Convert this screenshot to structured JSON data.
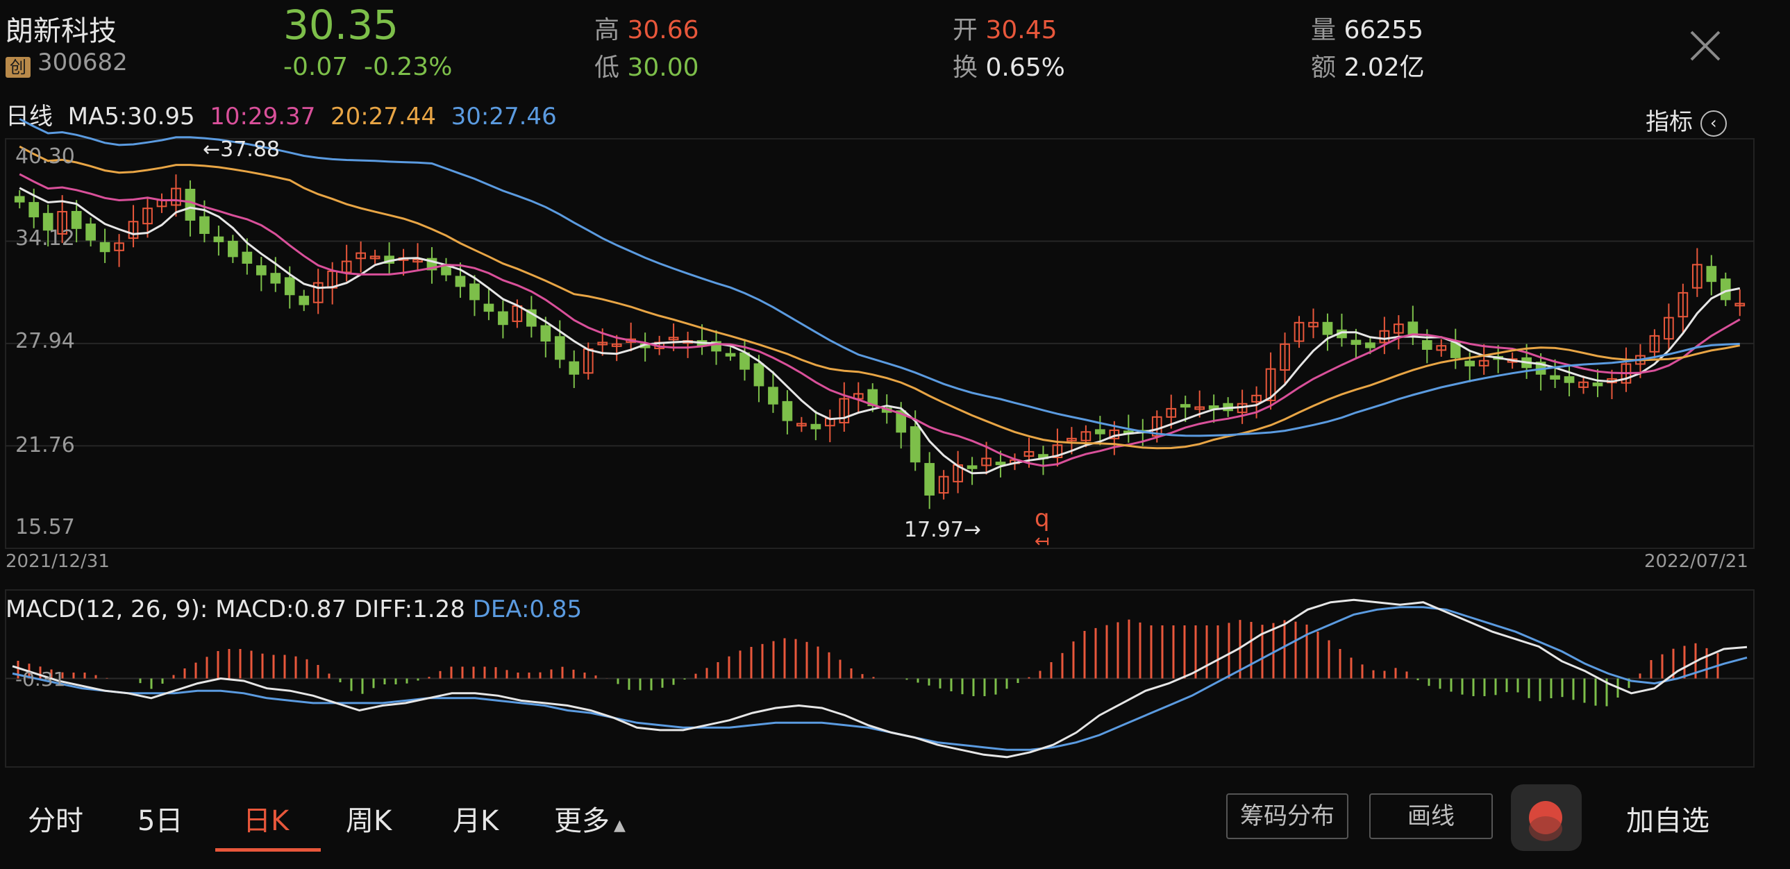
{
  "stock": {
    "name": "朗新科技",
    "badge": "创",
    "code": "300682"
  },
  "quote": {
    "price": "30.35",
    "change": "-0.07",
    "change_pct": "-0.23%"
  },
  "stats": {
    "high_label": "高",
    "high": "30.66",
    "low_label": "低",
    "low": "30.00",
    "open_label": "开",
    "open": "30.45",
    "turnover_label": "换",
    "turnover": "0.65%",
    "volume_label": "量",
    "volume": "66255",
    "amount_label": "额",
    "amount": "2.02亿"
  },
  "ma_bar": {
    "period": "日线",
    "ma5": "MA5:30.95",
    "ma10": "10:29.37",
    "ma20": "20:27.44",
    "ma30": "30:27.46",
    "indicator": "指标"
  },
  "price_axis": {
    "ticks": [
      "40.30",
      "34.12",
      "27.94",
      "21.76",
      "15.57"
    ]
  },
  "date_range": {
    "start": "2021/12/31",
    "end": "2022/07/21"
  },
  "markers": {
    "high_marker": "←37.88",
    "low_marker": "17.97→",
    "q_marker": "q"
  },
  "macd_bar": {
    "label": "MACD(12, 26, 9): MACD:0.87 DIFF:1.28",
    "dea": "DEA:0.85",
    "tick": "-0.31"
  },
  "tabs": [
    {
      "label": "分时"
    },
    {
      "label": "5日"
    },
    {
      "label": "日K"
    },
    {
      "label": "周K"
    },
    {
      "label": "月K"
    },
    {
      "label": "更多"
    }
  ],
  "buttons": {
    "chips": "筹码分布",
    "draw": "画线",
    "add_watch": "加自选"
  },
  "colors": {
    "up": "#e8573b",
    "down": "#7dbf4a",
    "ma5": "#e6e6e6",
    "ma10": "#d9509a",
    "ma20": "#e8a545",
    "ma30": "#5b9be0",
    "dea": "#5b9be0"
  },
  "chart_data": [
    {
      "type": "candlestick",
      "ylim": [
        15.57,
        40.3
      ],
      "y_ticks": [
        40.3,
        34.12,
        27.94,
        21.76,
        15.57
      ],
      "x_range": [
        "2021/12/31",
        "2022/07/21"
      ],
      "high_annotation": 37.88,
      "low_annotation": 17.97,
      "series": [
        {
          "name": "MA5",
          "value": 30.95
        },
        {
          "name": "10",
          "value": 29.37
        },
        {
          "name": "20",
          "value": 27.44
        },
        {
          "name": "30",
          "value": 27.46
        }
      ],
      "close": [
        36.5,
        35.6,
        34.8,
        35.9,
        34.9,
        34.2,
        33.5,
        34.0,
        35.3,
        36.1,
        36.6,
        37.3,
        35.4,
        34.6,
        34.1,
        33.2,
        32.8,
        32.1,
        31.6,
        30.9,
        30.3,
        31.6,
        32.3,
        32.9,
        33.4,
        33.2,
        32.8,
        33.1,
        33.0,
        32.4,
        32.1,
        31.4,
        30.6,
        29.9,
        29.1,
        30.2,
        29.0,
        28.1,
        27.0,
        26.1,
        27.6,
        28.0,
        27.9,
        28.2,
        27.7,
        28.0,
        28.3,
        28.1,
        27.8,
        27.5,
        27.3,
        26.4,
        25.4,
        24.3,
        23.3,
        23.1,
        22.8,
        23.4,
        24.6,
        24.9,
        24.2,
        23.8,
        22.6,
        20.8,
        18.8,
        19.9,
        20.6,
        20.4,
        21.0,
        20.7,
        20.9,
        21.4,
        21.0,
        21.8,
        22.2,
        22.6,
        22.5,
        22.7,
        22.5,
        22.6,
        23.5,
        24.0,
        24.2,
        24.1,
        24.0,
        23.9,
        24.3,
        24.8,
        26.4,
        27.9,
        29.2,
        29.2,
        28.5,
        28.3,
        27.9,
        27.7,
        28.7,
        29.1,
        28.4,
        27.6,
        27.8,
        27.1,
        26.6,
        26.9,
        27.0,
        27.0,
        26.5,
        26.1,
        25.8,
        25.6,
        25.6,
        25.4,
        25.8,
        26.7,
        27.2,
        28.4,
        29.5,
        31.0,
        32.7,
        31.7,
        30.6,
        30.35
      ],
      "macd": {
        "diff": [
          0.5,
          0.2,
          -0.1,
          -0.3,
          -0.5,
          -0.6,
          -0.8,
          -0.5,
          -0.2,
          0.0,
          -0.1,
          -0.4,
          -0.5,
          -0.7,
          -1.0,
          -1.3,
          -1.1,
          -1.0,
          -0.8,
          -0.6,
          -0.6,
          -0.7,
          -0.9,
          -1.0,
          -1.1,
          -1.3,
          -1.6,
          -2.0,
          -2.1,
          -2.1,
          -1.9,
          -1.7,
          -1.4,
          -1.2,
          -1.1,
          -1.2,
          -1.5,
          -1.9,
          -2.2,
          -2.4,
          -2.7,
          -2.9,
          -3.1,
          -3.2,
          -3.0,
          -2.7,
          -2.2,
          -1.5,
          -1.0,
          -0.5,
          -0.2,
          0.2,
          0.7,
          1.2,
          1.8,
          2.2,
          2.8,
          3.1,
          3.2,
          3.1,
          3.0,
          3.1,
          2.7,
          2.3,
          1.9,
          1.6,
          1.3,
          0.7,
          0.3,
          -0.2,
          -0.6,
          -0.4,
          0.3,
          0.8,
          1.2,
          1.28
        ],
        "dea": [
          0.2,
          0.0,
          -0.2,
          -0.4,
          -0.5,
          -0.6,
          -0.6,
          -0.6,
          -0.5,
          -0.5,
          -0.6,
          -0.8,
          -0.9,
          -1.0,
          -1.0,
          -1.0,
          -1.0,
          -0.9,
          -0.8,
          -0.8,
          -0.8,
          -0.9,
          -1.0,
          -1.1,
          -1.3,
          -1.4,
          -1.6,
          -1.8,
          -1.9,
          -2.0,
          -2.0,
          -2.0,
          -1.9,
          -1.8,
          -1.8,
          -1.8,
          -1.9,
          -2.0,
          -2.2,
          -2.4,
          -2.6,
          -2.7,
          -2.8,
          -2.9,
          -2.9,
          -2.8,
          -2.6,
          -2.3,
          -1.9,
          -1.5,
          -1.1,
          -0.7,
          -0.2,
          0.3,
          0.8,
          1.3,
          1.8,
          2.2,
          2.6,
          2.8,
          2.9,
          2.9,
          2.8,
          2.5,
          2.2,
          1.9,
          1.5,
          1.1,
          0.6,
          0.2,
          -0.1,
          -0.2,
          0.0,
          0.3,
          0.6,
          0.85
        ]
      }
    }
  ]
}
